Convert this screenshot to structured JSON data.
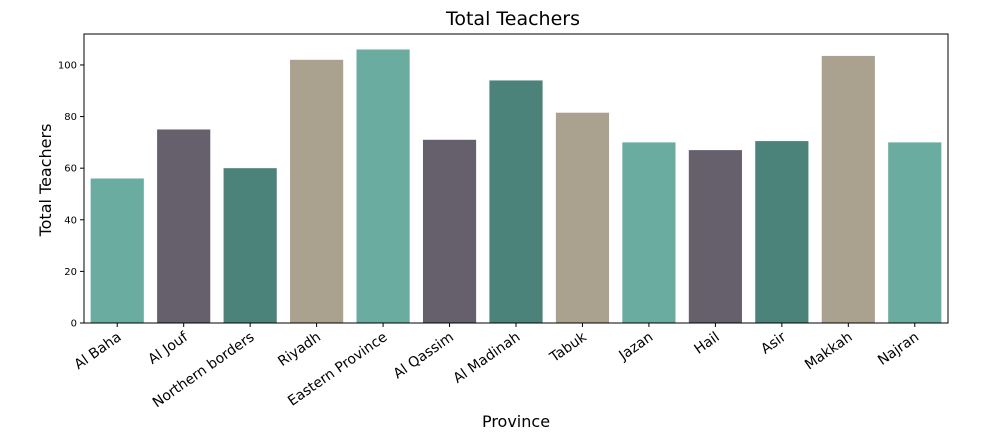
{
  "chart_data": {
    "type": "bar",
    "title": "Total Teachers",
    "xlabel": "Province",
    "ylabel": "Total Teachers",
    "ylim": [
      0,
      112
    ],
    "yticks": [
      0,
      20,
      40,
      60,
      80,
      100
    ],
    "grid": false,
    "categories": [
      "Al Baha",
      "Al Jouf",
      "Northern borders",
      "Riyadh",
      "Eastern Province",
      "Al Qassim",
      "Al Madinah",
      "Tabuk",
      "Jazan",
      "Hail",
      "Asir",
      "Makkah",
      "Najran"
    ],
    "values": [
      56,
      75,
      60,
      102,
      106,
      71,
      94,
      81.5,
      70,
      67,
      70.5,
      103.5,
      70
    ],
    "bar_colors": [
      "#6aaca0",
      "#665f6c",
      "#4b8279",
      "#aba18f",
      "#6aaca0",
      "#665f6c",
      "#4b8279",
      "#aba18f",
      "#6aaca0",
      "#665f6c",
      "#4b8279",
      "#aba18f",
      "#6aaca0"
    ]
  }
}
